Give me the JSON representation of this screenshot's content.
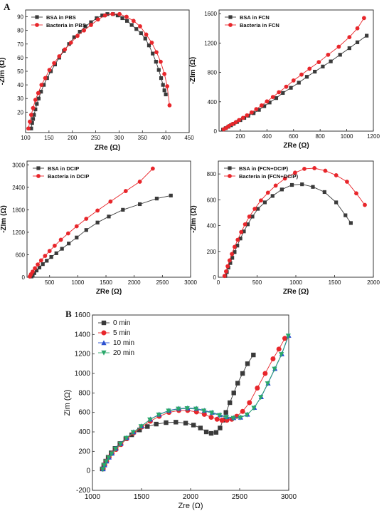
{
  "figure": {
    "panel_letters": [
      "A",
      "B"
    ]
  },
  "colors": {
    "black": "#3a3a3a",
    "red": "#e8262b",
    "blue": "#2a4fd0",
    "green": "#2aa86a"
  },
  "chart_data": [
    {
      "id": "pbs",
      "type": "scatter",
      "xlabel": "ZRe (Ω)",
      "ylabel": "-ZIm (Ω)",
      "xlim": [
        100,
        450
      ],
      "ylim": [
        5,
        95
      ],
      "xticks": [
        100,
        150,
        200,
        250,
        300,
        350,
        400,
        450
      ],
      "yticks": [
        20,
        30,
        40,
        50,
        60,
        70,
        80,
        90
      ],
      "legend_position": "top-left",
      "series": [
        {
          "name": "BSA in PBS",
          "color": "#3a3a3a",
          "marker": "square",
          "x": [
            112,
            114,
            116,
            118,
            121,
            124,
            128,
            133,
            139,
            146,
            154,
            163,
            172,
            182,
            193,
            204,
            216,
            228,
            240,
            252,
            264,
            275,
            287,
            297,
            307,
            317,
            327,
            337,
            347,
            356,
            364,
            372,
            379,
            385,
            390,
            394,
            397,
            400
          ],
          "y": [
            8,
            12,
            15,
            18,
            22,
            26,
            30,
            35,
            40,
            45,
            50,
            55,
            60,
            65,
            70,
            75,
            79,
            83,
            86,
            89,
            91,
            92,
            92,
            91,
            89,
            87,
            84,
            81,
            78,
            74,
            69,
            63,
            57,
            51,
            45,
            40,
            36,
            33
          ]
        },
        {
          "name": "Bacteria in PBS",
          "color": "#e8262b",
          "marker": "circle",
          "x": [
            106,
            109,
            112,
            116,
            121,
            127,
            134,
            142,
            151,
            161,
            172,
            184,
            197,
            211,
            225,
            240,
            255,
            270,
            286,
            301,
            316,
            331,
            345,
            358,
            370,
            380,
            389,
            397,
            403,
            408
          ],
          "y": [
            8,
            13,
            18,
            23,
            29,
            34,
            40,
            45,
            51,
            56,
            61,
            66,
            71,
            76,
            80,
            84,
            88,
            91,
            92,
            92,
            90,
            87,
            83,
            77,
            71,
            64,
            57,
            48,
            39,
            25
          ]
        }
      ]
    },
    {
      "id": "fcn",
      "type": "scatter",
      "xlabel": "ZRe (Ω)",
      "ylabel": "-ZIm (Ω)",
      "xlim": [
        40,
        1200
      ],
      "ylim": [
        0,
        1650
      ],
      "xticks": [
        200,
        400,
        600,
        800,
        1000,
        1200
      ],
      "yticks": [
        0,
        400,
        800,
        1200,
        1600
      ],
      "legend_position": "top-left",
      "series": [
        {
          "name": "BSA in FCN",
          "color": "#3a3a3a",
          "marker": "square",
          "x": [
            70,
            90,
            110,
            130,
            150,
            175,
            200,
            230,
            260,
            300,
            340,
            380,
            420,
            470,
            520,
            580,
            640,
            700,
            760,
            820,
            880,
            950,
            1020,
            1080,
            1150
          ],
          "y": [
            20,
            40,
            60,
            80,
            100,
            125,
            150,
            180,
            210,
            245,
            290,
            340,
            390,
            450,
            520,
            590,
            660,
            740,
            810,
            880,
            950,
            1040,
            1130,
            1210,
            1300
          ]
        },
        {
          "name": "Bacteria in FCN",
          "color": "#e8262b",
          "marker": "circle",
          "x": [
            75,
            95,
            115,
            140,
            165,
            190,
            220,
            250,
            285,
            320,
            360,
            400,
            445,
            490,
            545,
            600,
            660,
            720,
            790,
            860,
            940,
            1020,
            1080,
            1130
          ],
          "y": [
            25,
            45,
            70,
            95,
            120,
            150,
            180,
            215,
            255,
            300,
            350,
            405,
            465,
            530,
            605,
            690,
            770,
            850,
            940,
            1040,
            1150,
            1280,
            1400,
            1540
          ]
        }
      ]
    },
    {
      "id": "dcip",
      "type": "scatter",
      "xlabel": "ZRe (Ω)",
      "ylabel": "-ZIm (Ω)",
      "xlim": [
        100,
        3000
      ],
      "ylim": [
        0,
        3100
      ],
      "xticks": [
        500,
        1000,
        1500,
        2000,
        2500,
        3000
      ],
      "yticks": [
        0,
        600,
        1200,
        1800,
        2400,
        3000
      ],
      "legend_position": "top-left",
      "series": [
        {
          "name": "BSA in DCIP",
          "color": "#3a3a3a",
          "marker": "square",
          "x": [
            180,
            200,
            230,
            270,
            320,
            380,
            450,
            530,
            620,
            720,
            840,
            980,
            1150,
            1350,
            1550,
            1800,
            2100,
            2400,
            2650
          ],
          "y": [
            20,
            60,
            110,
            180,
            260,
            350,
            440,
            540,
            640,
            760,
            900,
            1060,
            1260,
            1460,
            1620,
            1800,
            1950,
            2100,
            2180
          ]
        },
        {
          "name": "Bacteria in DCIP",
          "color": "#e8262b",
          "marker": "circle",
          "x": [
            150,
            170,
            200,
            240,
            290,
            350,
            420,
            500,
            590,
            700,
            830,
            980,
            1150,
            1350,
            1580,
            1850,
            2100,
            2330
          ],
          "y": [
            20,
            80,
            150,
            240,
            340,
            450,
            570,
            700,
            840,
            1000,
            1170,
            1360,
            1560,
            1780,
            2020,
            2300,
            2550,
            2900
          ]
        }
      ]
    },
    {
      "id": "fcn_dcip",
      "type": "scatter",
      "xlabel": "ZRe (Ω)",
      "ylabel": "-ZIm (Ω)",
      "xlim": [
        0,
        2000
      ],
      "ylim": [
        0,
        900
      ],
      "xticks": [
        0,
        500,
        1000,
        1500,
        2000
      ],
      "yticks": [
        0,
        200,
        400,
        600,
        800
      ],
      "legend_position": "top-left",
      "series": [
        {
          "name": "BSA in (FCN+DCIP)",
          "color": "#3a3a3a",
          "marker": "square",
          "x": [
            90,
            110,
            130,
            155,
            180,
            210,
            245,
            285,
            330,
            380,
            440,
            510,
            600,
            700,
            820,
            950,
            1080,
            1220,
            1370,
            1520,
            1640,
            1710
          ],
          "y": [
            10,
            40,
            75,
            110,
            150,
            195,
            245,
            300,
            355,
            410,
            470,
            530,
            580,
            630,
            680,
            715,
            720,
            700,
            660,
            580,
            480,
            420
          ]
        },
        {
          "name": "Bacteria in (FCN+DCIP)",
          "color": "#e8262b",
          "marker": "circle",
          "x": [
            80,
            100,
            120,
            145,
            175,
            210,
            250,
            295,
            345,
            400,
            470,
            550,
            640,
            740,
            860,
            990,
            1110,
            1240,
            1380,
            1520,
            1660,
            1780,
            1890
          ],
          "y": [
            10,
            45,
            85,
            130,
            180,
            235,
            290,
            350,
            410,
            470,
            530,
            595,
            655,
            710,
            765,
            810,
            840,
            845,
            825,
            790,
            740,
            650,
            560
          ]
        }
      ]
    },
    {
      "id": "time",
      "type": "line",
      "xlabel": "Zre (Ω)",
      "ylabel": "Zim (Ω)",
      "xlim": [
        1000,
        3000
      ],
      "ylim": [
        -200,
        1600
      ],
      "xticks": [
        1000,
        1500,
        2000,
        2500,
        3000
      ],
      "yticks": [
        -200,
        0,
        200,
        400,
        600,
        800,
        1000,
        1200,
        1400,
        1600
      ],
      "legend_position": "top-left",
      "series": [
        {
          "name": "0 min",
          "color": "#3a3a3a",
          "marker": "square",
          "x": [
            1100,
            1115,
            1135,
            1160,
            1190,
            1230,
            1280,
            1340,
            1400,
            1480,
            1560,
            1650,
            1750,
            1850,
            1950,
            2030,
            2100,
            2160,
            2210,
            2260,
            2300,
            2330,
            2360,
            2400,
            2440,
            2480,
            2530,
            2580,
            2640
          ],
          "y": [
            20,
            60,
            100,
            140,
            185,
            230,
            280,
            330,
            370,
            420,
            455,
            480,
            495,
            500,
            490,
            470,
            440,
            400,
            385,
            395,
            440,
            520,
            600,
            700,
            800,
            900,
            1000,
            1100,
            1190
          ]
        },
        {
          "name": "5 min",
          "color": "#e8262b",
          "marker": "circle",
          "x": [
            1110,
            1125,
            1145,
            1170,
            1200,
            1240,
            1290,
            1350,
            1420,
            1500,
            1590,
            1680,
            1780,
            1880,
            1970,
            2060,
            2140,
            2210,
            2270,
            2320,
            2370,
            2420,
            2470,
            2530,
            2600,
            2680,
            2760,
            2840,
            2900,
            2960
          ],
          "y": [
            20,
            60,
            100,
            140,
            180,
            220,
            270,
            330,
            390,
            450,
            510,
            560,
            600,
            620,
            620,
            605,
            580,
            550,
            530,
            520,
            520,
            530,
            560,
            610,
            700,
            850,
            1000,
            1150,
            1250,
            1360
          ]
        },
        {
          "name": "10 min",
          "color": "#2a4fd0",
          "marker": "triangle-up",
          "x": [
            1110,
            1125,
            1145,
            1170,
            1200,
            1240,
            1290,
            1350,
            1420,
            1500,
            1590,
            1680,
            1780,
            1880,
            1970,
            2060,
            2140,
            2220,
            2300,
            2370,
            2440,
            2510,
            2580,
            2650,
            2720,
            2790,
            2860,
            2930,
            3000
          ],
          "y": [
            20,
            60,
            100,
            140,
            180,
            230,
            280,
            340,
            400,
            460,
            530,
            580,
            620,
            640,
            645,
            640,
            620,
            600,
            575,
            555,
            545,
            550,
            580,
            650,
            760,
            900,
            1050,
            1200,
            1390
          ]
        },
        {
          "name": "20 min",
          "color": "#2aa86a",
          "marker": "triangle-down",
          "x": [
            1105,
            1120,
            1140,
            1165,
            1195,
            1235,
            1285,
            1345,
            1415,
            1495,
            1585,
            1675,
            1775,
            1875,
            1965,
            2055,
            2135,
            2215,
            2295,
            2365,
            2435,
            2505,
            2575,
            2645,
            2715,
            2785,
            2855,
            2925,
            2995
          ],
          "y": [
            15,
            55,
            95,
            135,
            175,
            225,
            275,
            335,
            395,
            455,
            525,
            575,
            615,
            635,
            640,
            635,
            615,
            595,
            570,
            550,
            540,
            545,
            575,
            645,
            755,
            895,
            1045,
            1195,
            1385
          ]
        }
      ]
    }
  ]
}
